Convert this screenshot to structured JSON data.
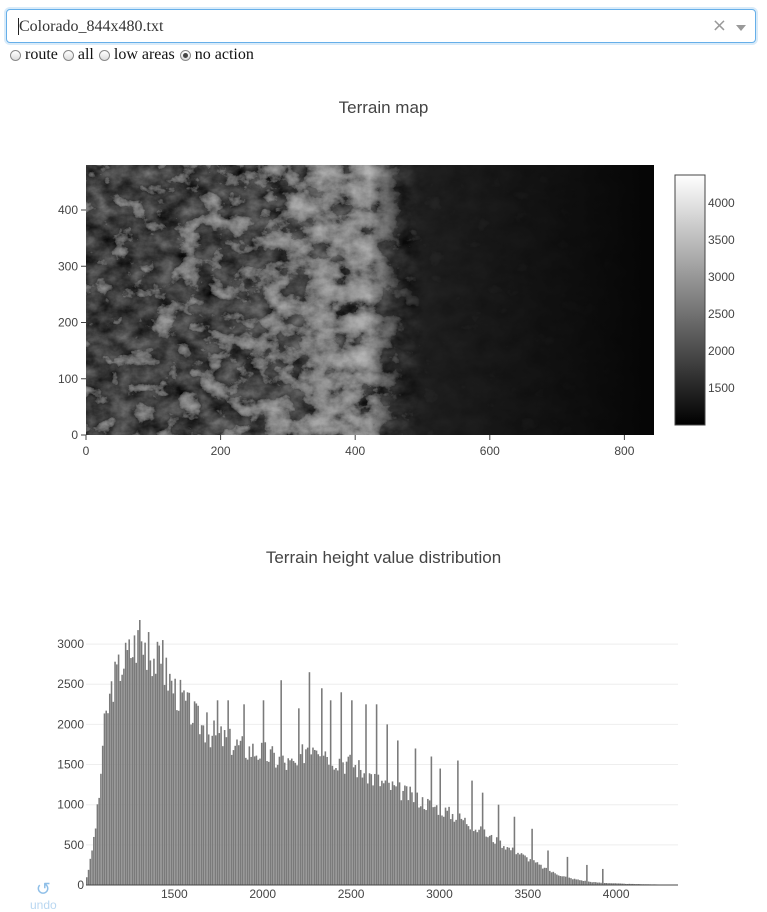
{
  "file_select": {
    "value": "Colorado_844x480.txt",
    "clear_glyph": "×"
  },
  "modes": {
    "options": [
      "route",
      "all",
      "low areas",
      "no action"
    ],
    "selected": "no action"
  },
  "undo": {
    "glyph": "↺",
    "label": "undo"
  },
  "chart_data": [
    {
      "type": "heatmap",
      "title": "Terrain map",
      "x_ticks": [
        "0",
        "200",
        "400",
        "600",
        "800"
      ],
      "x_tick_values": [
        0,
        200,
        400,
        600,
        800
      ],
      "xlim": [
        0,
        844
      ],
      "y_ticks": [
        "0",
        "100",
        "200",
        "300",
        "400"
      ],
      "y_tick_values": [
        0,
        100,
        200,
        300,
        400
      ],
      "ylim": [
        0,
        480
      ],
      "colorscale": [
        "#000000",
        "#ffffff"
      ],
      "colorbar_ticks": [
        "4000",
        "3500",
        "3000",
        "2500",
        "2000",
        "1500"
      ],
      "colorbar_tick_values": [
        4000,
        3500,
        3000,
        2500,
        2000,
        1500
      ],
      "z_range": [
        1000,
        4380
      ]
    },
    {
      "type": "bar",
      "title": "Terrain height value distribution",
      "x_ticks": [
        "1500",
        "2000",
        "2500",
        "3000",
        "3500",
        "4000"
      ],
      "x_tick_values": [
        1500,
        2000,
        2500,
        3000,
        3500,
        4000
      ],
      "xlim": [
        1000,
        4350
      ],
      "y_ticks": [
        "0",
        "500",
        "1000",
        "1500",
        "2000",
        "2500",
        "3000"
      ],
      "y_tick_values": [
        0,
        500,
        1000,
        1500,
        2000,
        2500,
        3000
      ],
      "ylim": [
        0,
        3300
      ],
      "bin_width": 10,
      "bar_color": "#7a7a7a",
      "x": [
        1000,
        1025,
        1050,
        1075,
        1100,
        1150,
        1200,
        1250,
        1300,
        1350,
        1400,
        1450,
        1500,
        1550,
        1600,
        1650,
        1700,
        1750,
        1800,
        1850,
        1900,
        1950,
        2000,
        2050,
        2100,
        2150,
        2200,
        2250,
        2300,
        2350,
        2400,
        2450,
        2500,
        2550,
        2600,
        2650,
        2700,
        2750,
        2800,
        2850,
        2900,
        2950,
        3000,
        3050,
        3100,
        3150,
        3200,
        3250,
        3300,
        3350,
        3400,
        3450,
        3500,
        3550,
        3600,
        3650,
        3700,
        3750,
        3800,
        3850,
        3900,
        3950,
        4000,
        4050,
        4100,
        4150,
        4200,
        4250,
        4300,
        4350
      ],
      "y": [
        50,
        300,
        650,
        1100,
        1900,
        2500,
        2750,
        2900,
        3050,
        2950,
        2800,
        2650,
        2450,
        2300,
        2150,
        2000,
        1900,
        1850,
        1800,
        1750,
        1700,
        1680,
        1650,
        1600,
        1550,
        1500,
        1480,
        1750,
        1800,
        1700,
        1600,
        1550,
        1500,
        1450,
        1380,
        1300,
        1250,
        1200,
        1150,
        1100,
        1050,
        1000,
        960,
        900,
        850,
        800,
        720,
        650,
        580,
        520,
        450,
        400,
        330,
        270,
        200,
        150,
        110,
        80,
        60,
        40,
        30,
        25,
        20,
        15,
        12,
        10,
        8,
        6,
        4,
        2
      ],
      "spikes": [
        [
          1300,
          3300
        ],
        [
          1350,
          3150
        ],
        [
          1430,
          3050
        ],
        [
          1570,
          2400
        ],
        [
          1680,
          2150
        ],
        [
          1740,
          2300
        ],
        [
          1800,
          2300
        ],
        [
          1890,
          2250
        ],
        [
          2000,
          2300
        ],
        [
          2100,
          2550
        ],
        [
          2200,
          2200
        ],
        [
          2260,
          2650
        ],
        [
          2330,
          2450
        ],
        [
          2380,
          2300
        ],
        [
          2440,
          2400
        ],
        [
          2500,
          2300
        ],
        [
          2580,
          2250
        ],
        [
          2640,
          2250
        ],
        [
          2700,
          2000
        ],
        [
          2760,
          1800
        ],
        [
          2860,
          1700
        ],
        [
          2950,
          1600
        ],
        [
          3000,
          1450
        ],
        [
          3100,
          1550
        ],
        [
          3180,
          1300
        ],
        [
          3240,
          1150
        ],
        [
          3330,
          1000
        ],
        [
          3420,
          850
        ],
        [
          3520,
          700
        ],
        [
          3610,
          430
        ],
        [
          3720,
          350
        ],
        [
          3830,
          250
        ],
        [
          3920,
          200
        ]
      ]
    }
  ]
}
